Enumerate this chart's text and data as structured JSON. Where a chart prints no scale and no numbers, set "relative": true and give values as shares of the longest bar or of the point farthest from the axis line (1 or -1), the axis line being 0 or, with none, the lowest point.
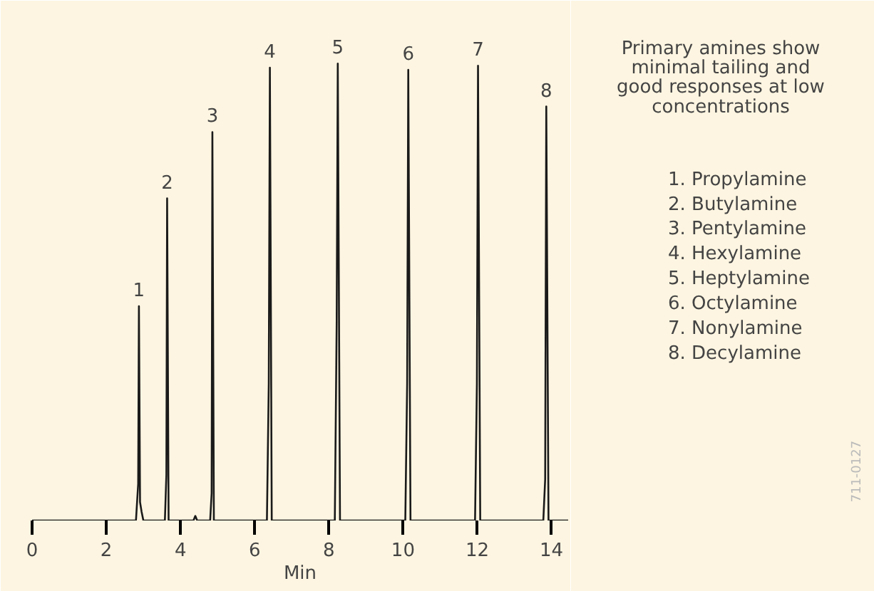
{
  "chart_data": {
    "type": "line",
    "relative": true,
    "title": "Primary amines show\nminimal tailing and\ngood responses at low\nconcentrations",
    "xlabel": "Min",
    "xlim": [
      0,
      14.45
    ],
    "xticks": [
      0,
      2,
      4,
      6,
      8,
      10,
      12,
      14
    ],
    "tick_labels": "x",
    "x": [
      0,
      2.8,
      2.86,
      2.88,
      2.91,
      2.95,
      3.0,
      3.58,
      3.62,
      3.64,
      3.68,
      4.35,
      4.4,
      4.45,
      4.8,
      4.84,
      4.86,
      4.9,
      6.33,
      6.38,
      6.41,
      6.46,
      8.16,
      8.21,
      8.24,
      8.3,
      10.06,
      10.11,
      10.14,
      10.2,
      11.94,
      11.99,
      12.02,
      12.08,
      13.78,
      13.83,
      13.86,
      13.92,
      14.45
    ],
    "values": [
      0,
      0,
      0.08,
      0.469,
      0.04,
      0.02,
      0,
      0,
      0.1,
      0.705,
      0,
      0,
      0.01,
      0,
      0,
      0.06,
      0.85,
      0,
      0,
      0.3,
      0.991,
      0,
      0,
      0.43,
      1,
      0,
      0,
      0.3,
      0.986,
      0,
      0,
      0.3,
      0.995,
      0,
      0,
      0.09,
      0.906,
      0,
      0
    ],
    "color": "#1a1a1a",
    "annotations": [
      {
        "text": "1",
        "x": 2.88,
        "y": 0.469
      },
      {
        "text": "2",
        "x": 3.64,
        "y": 0.705
      },
      {
        "text": "3",
        "x": 4.86,
        "y": 0.85
      },
      {
        "text": "4",
        "x": 6.41,
        "y": 0.991
      },
      {
        "text": "5",
        "x": 8.24,
        "y": 1
      },
      {
        "text": "6",
        "x": 10.14,
        "y": 0.986
      },
      {
        "text": "7",
        "x": 12.02,
        "y": 0.995
      },
      {
        "text": "8",
        "x": 13.86,
        "y": 0.906
      },
      "1. Propylamine",
      "2. Butylamine",
      "3. Pentylamine",
      "4. Hexylamine",
      "5. Heptylamine",
      "6. Octylamine",
      "7. Nonylamine",
      "8. Decylamine",
      "711-0127"
    ]
  }
}
